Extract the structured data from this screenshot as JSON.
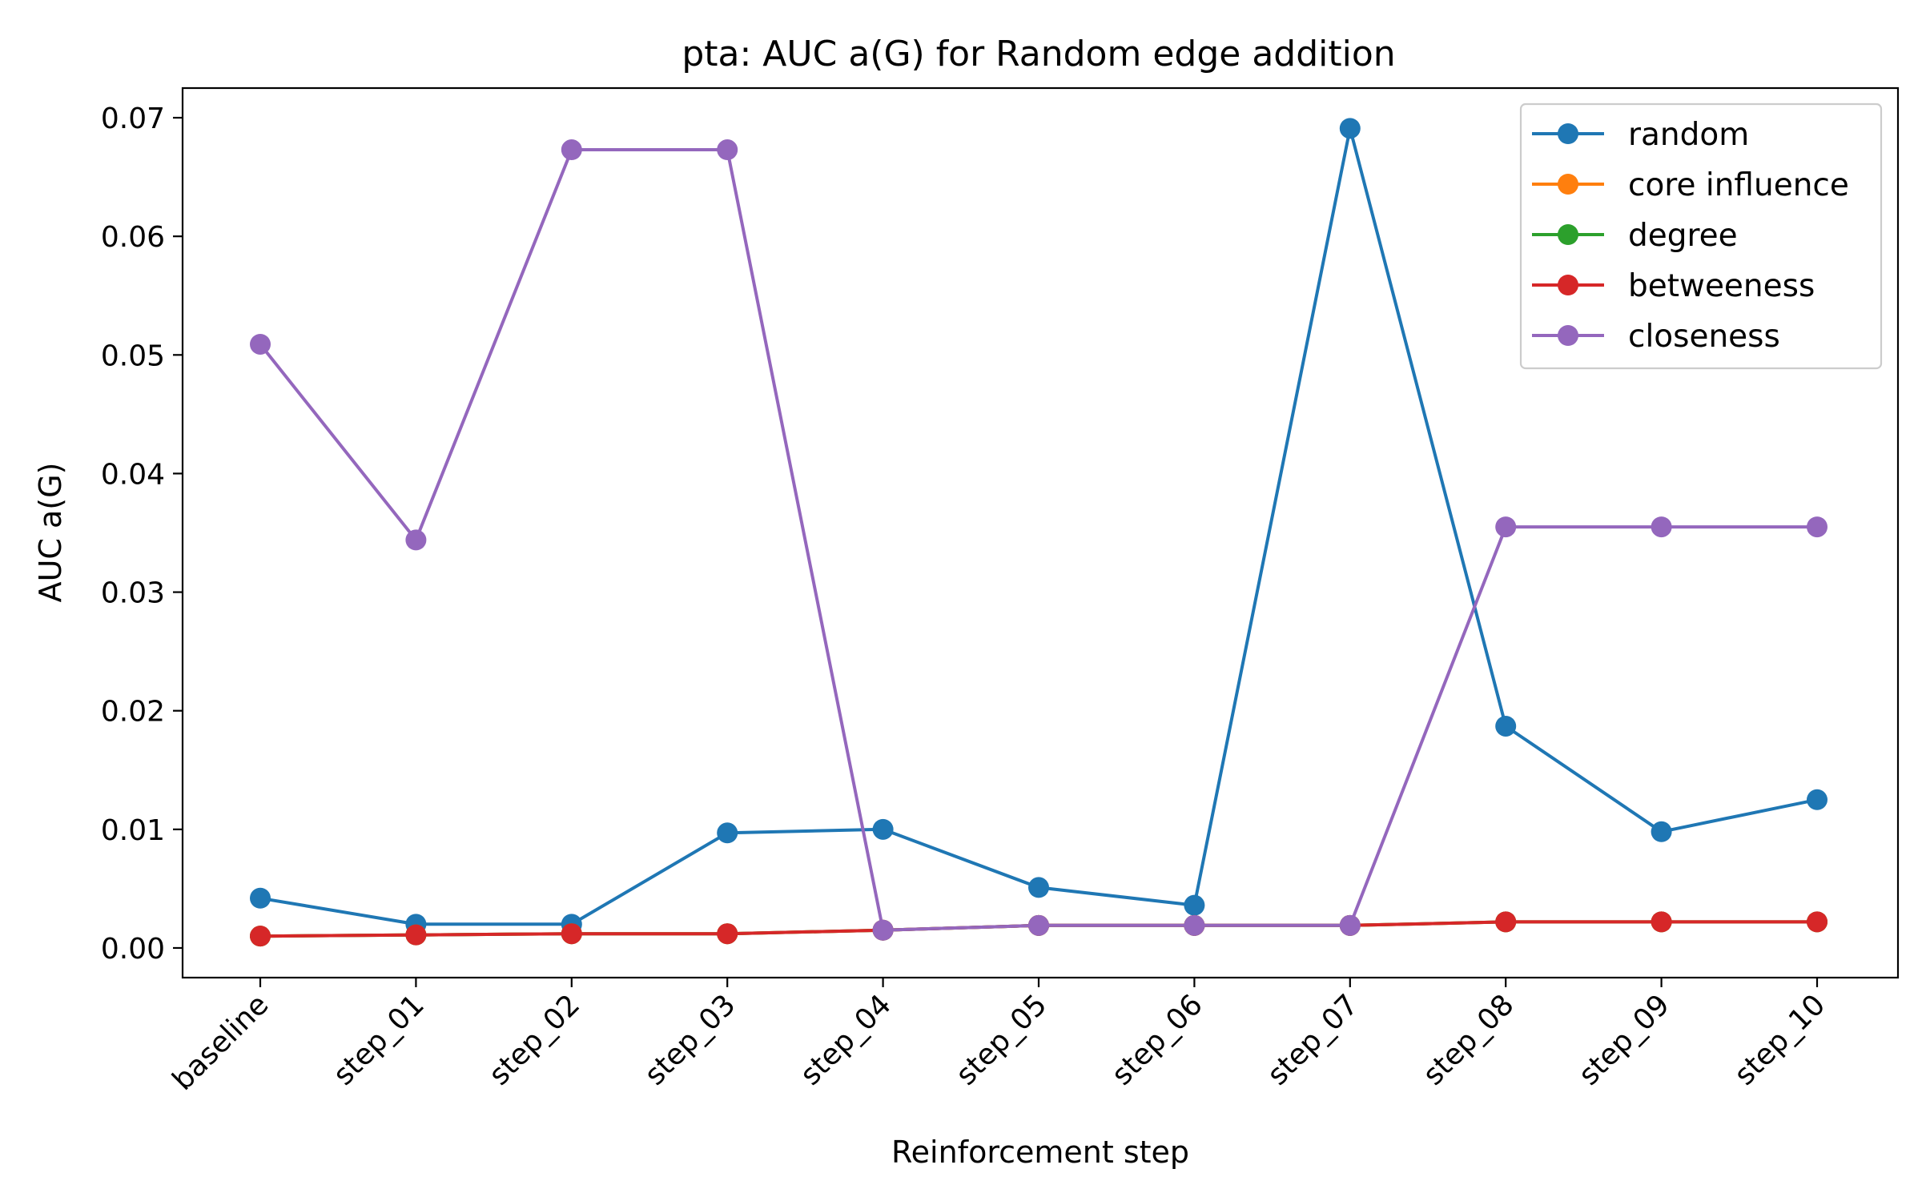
{
  "chart_data": {
    "type": "line",
    "title": "pta: AUC a(G) for Random edge addition",
    "xlabel": "Reinforcement step",
    "ylabel": "AUC a(G)",
    "categories": [
      "baseline",
      "step_01",
      "step_02",
      "step_03",
      "step_04",
      "step_05",
      "step_06",
      "step_07",
      "step_08",
      "step_09",
      "step_10"
    ],
    "ylim": [
      -0.0025,
      0.0725
    ],
    "yticks": [
      0.0,
      0.01,
      0.02,
      0.03,
      0.04,
      0.05,
      0.06,
      0.07
    ],
    "ytick_labels": [
      "0.00",
      "0.01",
      "0.02",
      "0.03",
      "0.04",
      "0.05",
      "0.06",
      "0.07"
    ],
    "grid": false,
    "legend_position": "top-right",
    "series": [
      {
        "name": "random",
        "color": "#1f77b4",
        "values": [
          0.0042,
          0.002,
          0.002,
          0.0097,
          0.01,
          0.0051,
          0.0036,
          0.0691,
          0.0187,
          0.0098,
          0.0125
        ]
      },
      {
        "name": "core influence",
        "color": "#ff7f0e",
        "values": [
          0.001,
          0.0011,
          0.0012,
          0.0012,
          0.0015,
          0.0019,
          0.0019,
          0.0019,
          0.0022,
          0.0022,
          0.0022
        ]
      },
      {
        "name": "degree",
        "color": "#2ca02c",
        "values": [
          0.001,
          0.0011,
          0.0012,
          0.0012,
          0.0015,
          0.0019,
          0.0019,
          0.0019,
          0.0022,
          0.0022,
          0.0022
        ]
      },
      {
        "name": "betweeness",
        "color": "#d62728",
        "values": [
          0.001,
          0.0011,
          0.0012,
          0.0012,
          0.0015,
          0.0019,
          0.0019,
          0.0019,
          0.0022,
          0.0022,
          0.0022
        ]
      },
      {
        "name": "closeness",
        "color": "#9467bd",
        "values": [
          0.0509,
          0.0344,
          0.0673,
          0.0673,
          0.0015,
          0.0019,
          0.0019,
          0.0019,
          0.0355,
          0.0355,
          0.0355
        ]
      }
    ]
  }
}
